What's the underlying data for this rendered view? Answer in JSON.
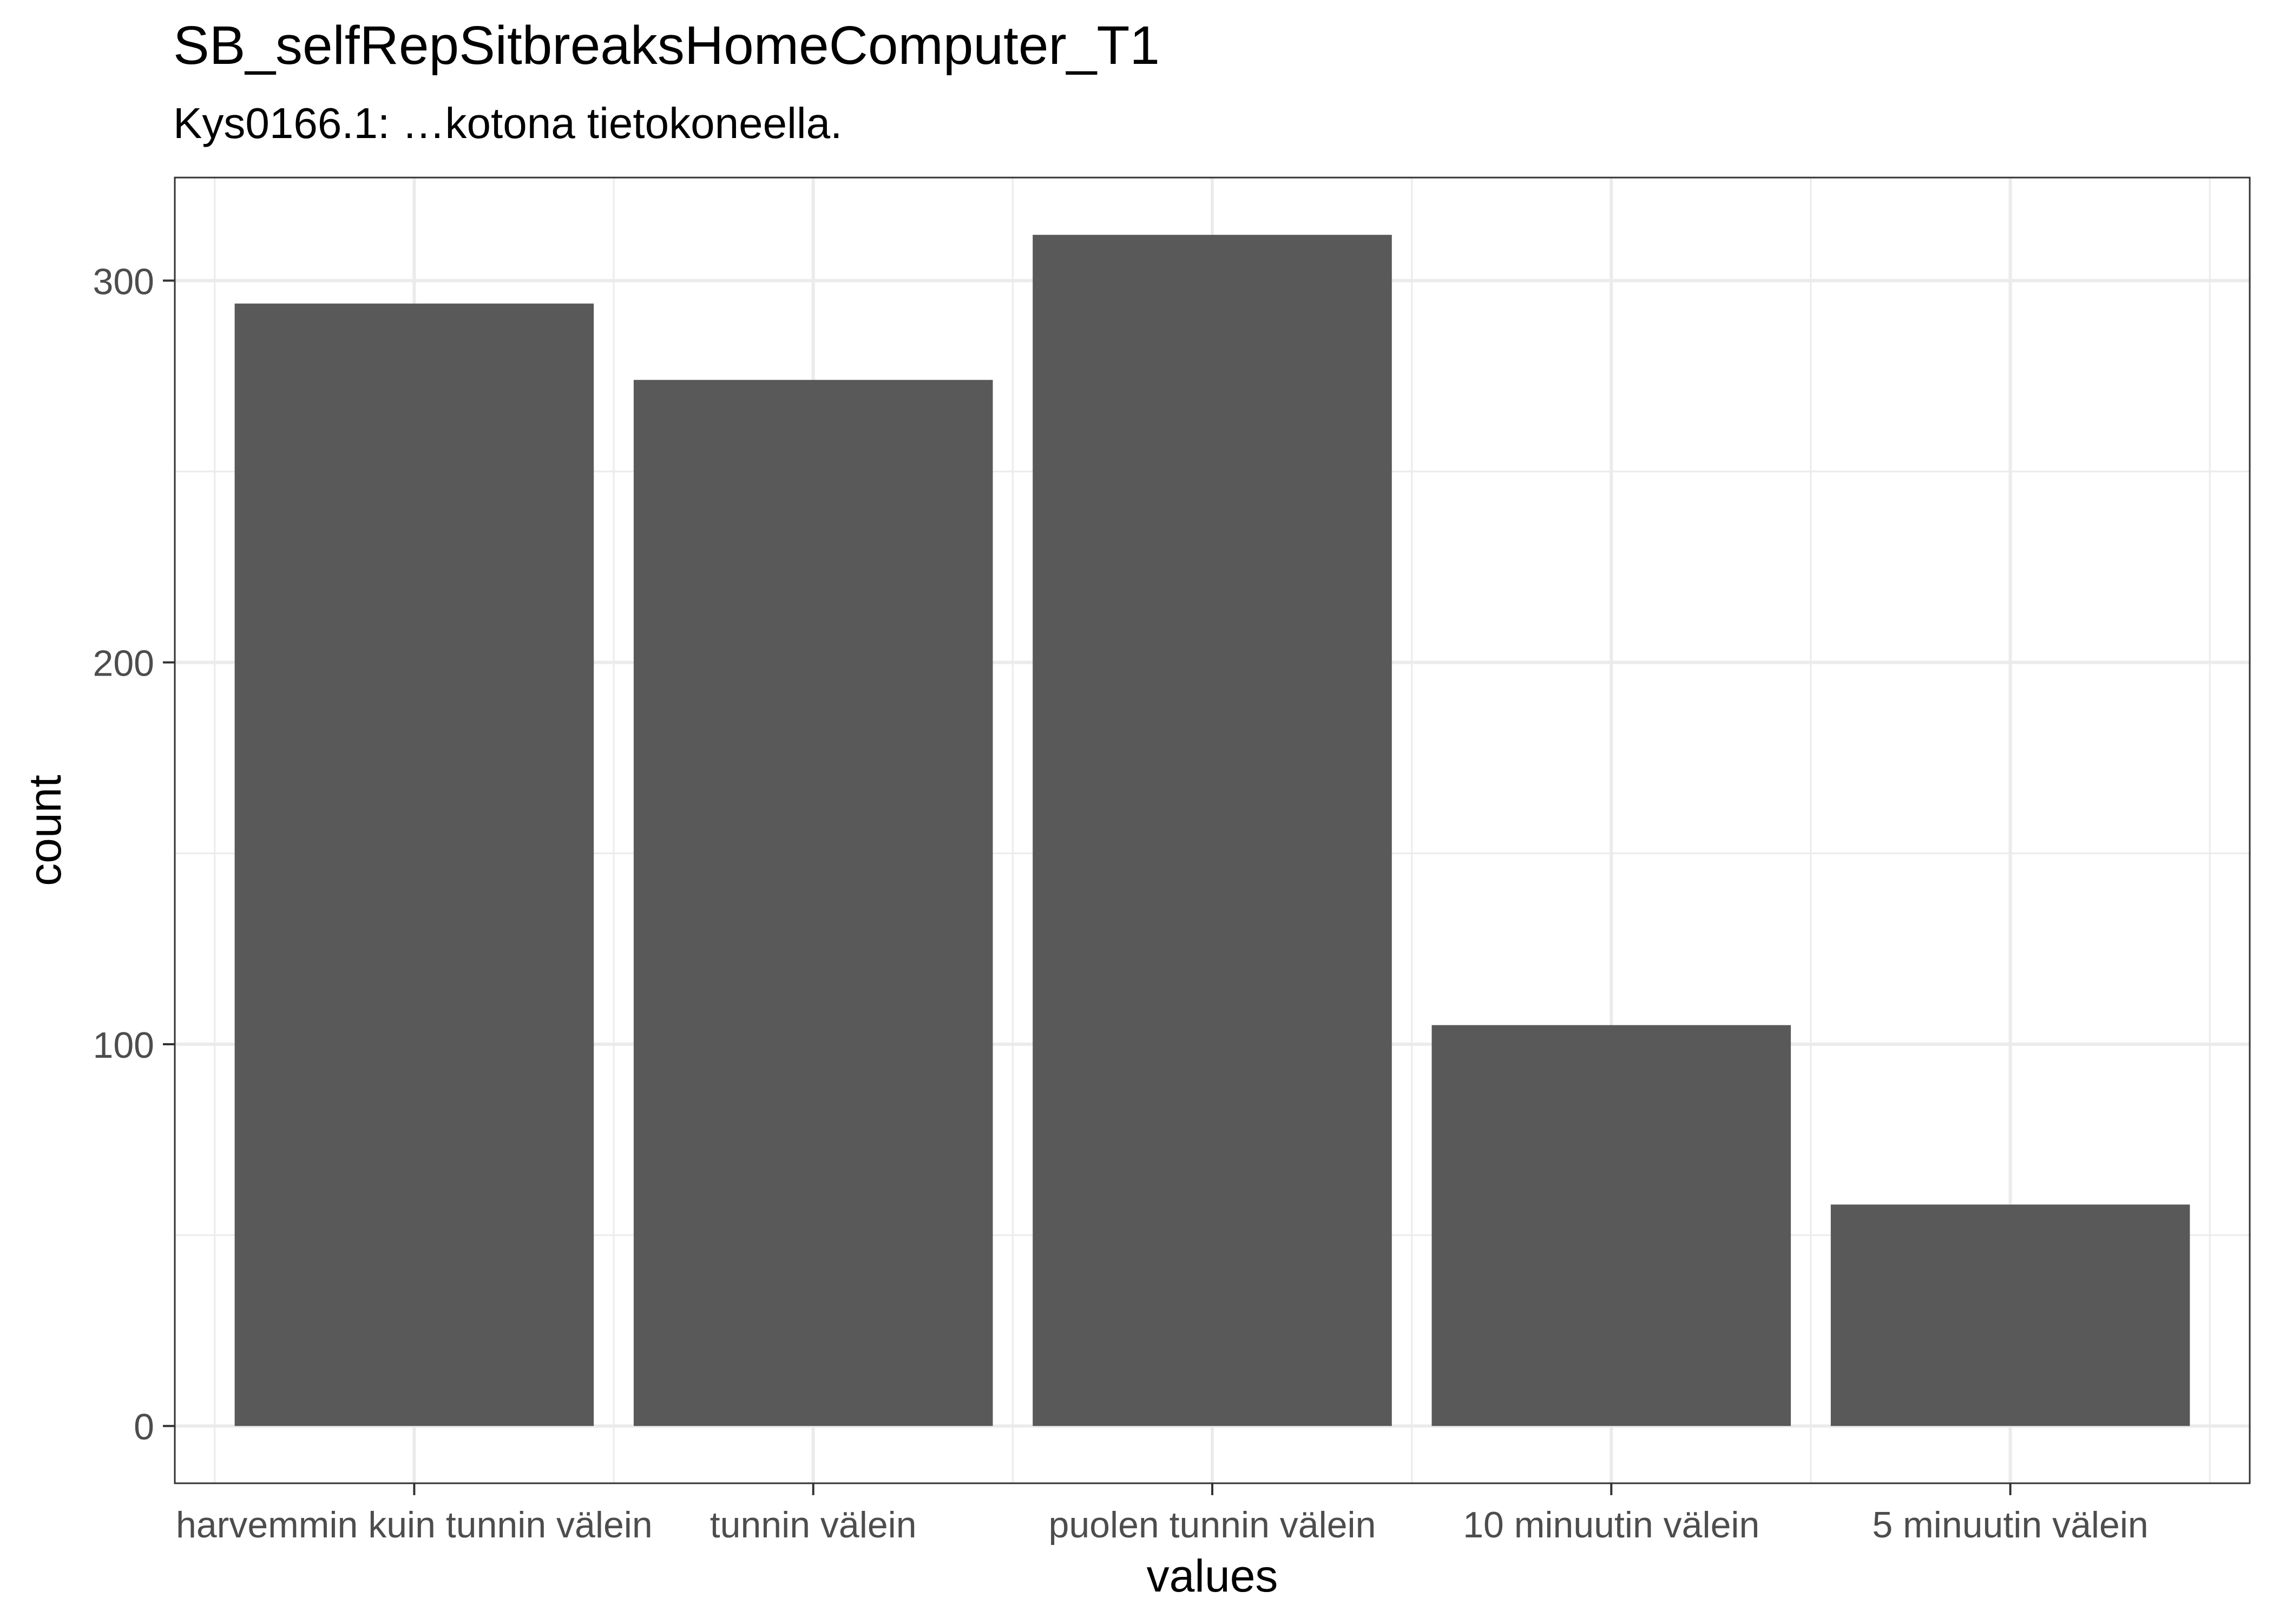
{
  "chart_data": {
    "type": "bar",
    "title": "SB_selfRepSitbreaksHomeComputer_T1",
    "subtitle": "Kys0166.1: …kotona tietokoneella.",
    "xlabel": "values",
    "ylabel": "count",
    "categories": [
      "harvemmin kuin tunnin välein",
      "tunnin välein",
      "puolen tunnin välein",
      "10 minuutin välein",
      "5 minuutin välein"
    ],
    "values": [
      294,
      274,
      312,
      105,
      58
    ],
    "ylim": [
      -15,
      327
    ],
    "yticks": [
      0,
      100,
      200,
      300
    ],
    "ytick_labels": [
      "0",
      "100",
      "200",
      "300"
    ],
    "grid": true,
    "legend": "none",
    "colors": {
      "bar": "#595959",
      "grid": "#ebebeb",
      "panel_border": "#333333",
      "axis_text": "#4d4d4d",
      "text": "#000000",
      "background": "#ffffff"
    }
  }
}
